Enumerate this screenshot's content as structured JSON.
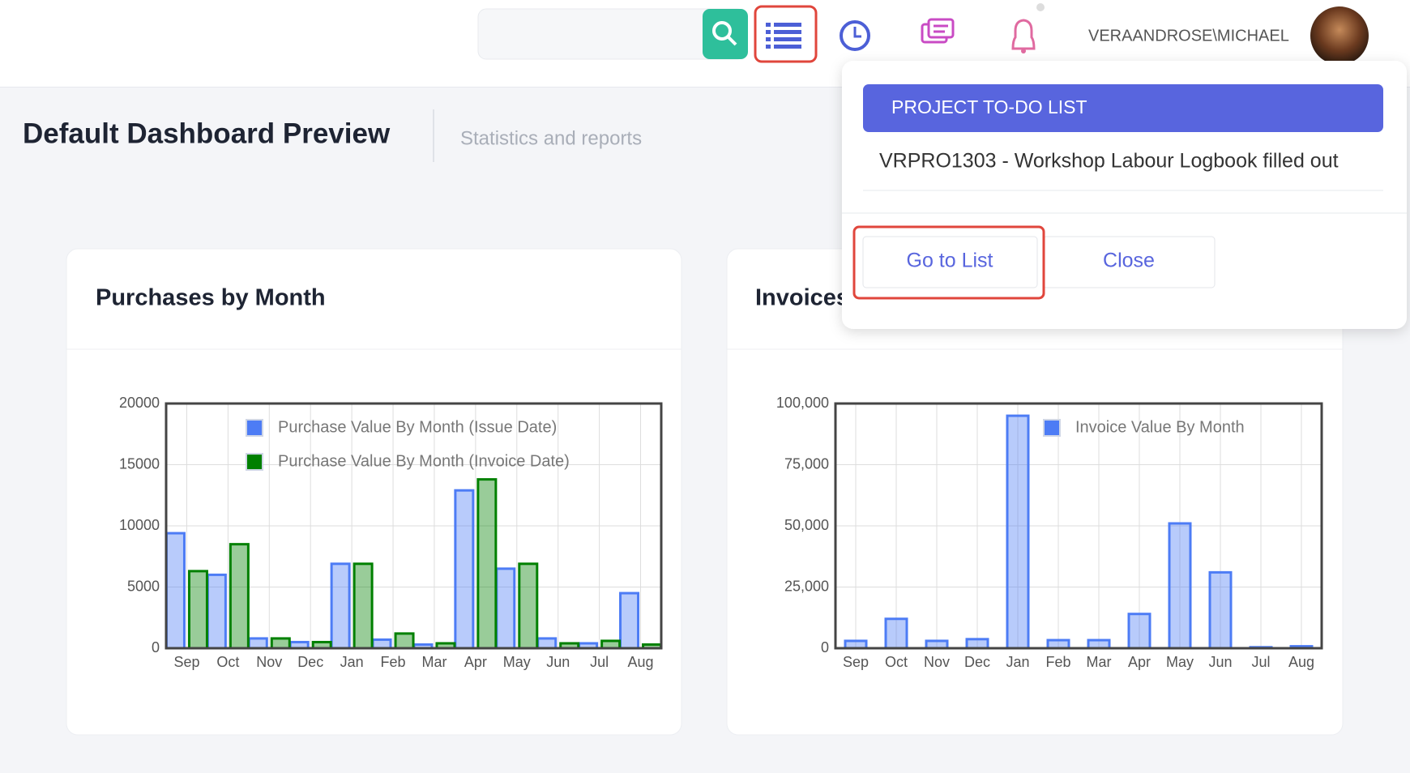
{
  "header": {
    "user": "VERAANDROSE\\MICHAEL"
  },
  "page": {
    "title": "Default Dashboard Preview",
    "subtitle": "Statistics and reports"
  },
  "popup": {
    "title": "PROJECT TO-DO LIST",
    "items": [
      "VRPRO1303 - Workshop Labour Logbook filled out"
    ],
    "buttons": [
      "Go to List",
      "Close"
    ]
  },
  "chart_data": [
    {
      "type": "bar",
      "title": "Purchases by Month",
      "categories": [
        "Sep",
        "Oct",
        "Nov",
        "Dec",
        "Jan",
        "Feb",
        "Mar",
        "Apr",
        "May",
        "Jun",
        "Jul",
        "Aug"
      ],
      "series": [
        {
          "name": "Purchase Value By Month (Issue Date)",
          "color": "#4d7cf5",
          "values": [
            9400,
            6000,
            800,
            500,
            6900,
            700,
            300,
            12900,
            6500,
            800,
            400,
            4500
          ]
        },
        {
          "name": "Purchase Value By Month (Invoice Date)",
          "color": "#008000",
          "values": [
            6300,
            8500,
            800,
            500,
            6900,
            1200,
            400,
            13800,
            6900,
            400,
            600,
            300
          ]
        }
      ],
      "ylim": [
        0,
        20000
      ],
      "yticks": [
        0,
        5000,
        10000,
        15000,
        20000
      ],
      "grid": true
    },
    {
      "type": "bar",
      "title": "Invoices",
      "categories": [
        "Sep",
        "Oct",
        "Nov",
        "Dec",
        "Jan",
        "Feb",
        "Mar",
        "Apr",
        "May",
        "Jun",
        "Jul",
        "Aug"
      ],
      "series": [
        {
          "name": "Invoice Value By Month",
          "color": "#4d7cf5",
          "values": [
            3000,
            12000,
            3000,
            3700,
            95000,
            3300,
            3300,
            14000,
            51000,
            31000,
            400,
            800
          ]
        }
      ],
      "ylim": [
        0,
        100000
      ],
      "yticks": [
        0,
        {
          "value": 25000,
          "label": "25,000"
        },
        {
          "value": 50000,
          "label": "50,000"
        },
        {
          "value": 75000,
          "label": "75,000"
        },
        {
          "value": 100000,
          "label": "100,000"
        }
      ],
      "grid": true
    }
  ]
}
